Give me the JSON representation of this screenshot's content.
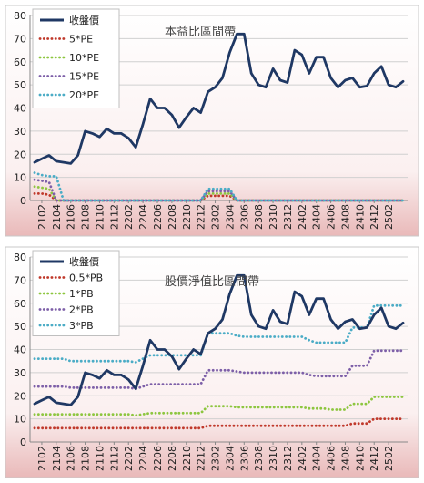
{
  "chart_data": [
    {
      "type": "line",
      "title": "本益比區間帶",
      "xlabel": "",
      "ylabel": "",
      "ylim": [
        0,
        80
      ],
      "yticks": [
        0,
        10,
        20,
        30,
        40,
        50,
        60,
        70,
        80
      ],
      "grid": true,
      "legend_position": "top-left",
      "x_tick_labels": [
        "2102",
        "2104",
        "2106",
        "2108",
        "2110",
        "2112",
        "2202",
        "2204",
        "2206",
        "2208",
        "2210",
        "2212",
        "2302",
        "2304",
        "2306",
        "2308",
        "2310",
        "2312",
        "2402",
        "2404",
        "2406",
        "2408",
        "2410",
        "2412",
        "2502"
      ],
      "series": [
        {
          "name": "收盤價",
          "color": "#1f3864",
          "style": "solid",
          "values": [
            16.5,
            18,
            19.5,
            17,
            16.5,
            16,
            19.5,
            30,
            29,
            27.5,
            31,
            29,
            29,
            27,
            23,
            33,
            44,
            40,
            40,
            37,
            31.5,
            36,
            40,
            38,
            47,
            49,
            53,
            64,
            72,
            72,
            55,
            50,
            49,
            57,
            52,
            51,
            65,
            63,
            55,
            62,
            62,
            53,
            49,
            52,
            53,
            49,
            49.5,
            55,
            58,
            50,
            49,
            51.5
          ]
        },
        {
          "name": "5*PE",
          "color": "#c0392b",
          "style": "dotted",
          "values": [
            3,
            3,
            2.5,
            0,
            0,
            0,
            0,
            0,
            0,
            0,
            0,
            0,
            0,
            0,
            0,
            0,
            0,
            0,
            0,
            0,
            0,
            0,
            0,
            0,
            2,
            2,
            2,
            2,
            0,
            0,
            0,
            0,
            0,
            0,
            0,
            0,
            0,
            0,
            0,
            0,
            0,
            0,
            0,
            0,
            0,
            0,
            0,
            0,
            0,
            0,
            0,
            0
          ]
        },
        {
          "name": "10*PE",
          "color": "#8dc63f",
          "style": "dotted",
          "values": [
            6,
            5.5,
            5,
            0,
            0,
            0,
            0,
            0,
            0,
            0,
            0,
            0,
            0,
            0,
            0,
            0,
            0,
            0,
            0,
            0,
            0,
            0,
            0,
            0,
            3,
            3,
            3,
            3,
            0,
            0,
            0,
            0,
            0,
            0,
            0,
            0,
            0,
            0,
            0,
            0,
            0,
            0,
            0,
            0,
            0,
            0,
            0,
            0,
            0,
            0,
            0,
            0
          ]
        },
        {
          "name": "15*PE",
          "color": "#7d5fa8",
          "style": "dotted",
          "values": [
            9,
            8.5,
            8,
            0,
            0,
            0,
            0,
            0,
            0,
            0,
            0,
            0,
            0,
            0,
            0,
            0,
            0,
            0,
            0,
            0,
            0,
            0,
            0,
            0,
            4,
            4,
            4,
            4,
            0,
            0,
            0,
            0,
            0,
            0,
            0,
            0,
            0,
            0,
            0,
            0,
            0,
            0,
            0,
            0,
            0,
            0,
            0,
            0,
            0,
            0,
            0,
            0
          ]
        },
        {
          "name": "20*PE",
          "color": "#4bacc6",
          "style": "dotted",
          "values": [
            12,
            11,
            10.5,
            10.5,
            0,
            0,
            0,
            0,
            0,
            0,
            0,
            0,
            0,
            0,
            0,
            0,
            0,
            0,
            0,
            0,
            0,
            0,
            0,
            0,
            5,
            5,
            5,
            5,
            0,
            0,
            0,
            0,
            0,
            0,
            0,
            0,
            0,
            0,
            0,
            0,
            0,
            0,
            0,
            0,
            0,
            0,
            0,
            0,
            0,
            0,
            0,
            0
          ]
        }
      ]
    },
    {
      "type": "line",
      "title": "股價淨值比區間帶",
      "xlabel": "",
      "ylabel": "",
      "ylim": [
        0,
        80
      ],
      "yticks": [
        0,
        10,
        20,
        30,
        40,
        50,
        60,
        70,
        80
      ],
      "grid": true,
      "legend_position": "top-left",
      "x_tick_labels": [
        "2102",
        "2104",
        "2106",
        "2108",
        "2110",
        "2112",
        "2202",
        "2204",
        "2206",
        "2208",
        "2210",
        "2212",
        "2302",
        "2304",
        "2306",
        "2308",
        "2310",
        "2312",
        "2402",
        "2404",
        "2406",
        "2408",
        "2410",
        "2412",
        "2502"
      ],
      "series": [
        {
          "name": "收盤價",
          "color": "#1f3864",
          "style": "solid",
          "values": [
            16.5,
            18,
            19.5,
            17,
            16.5,
            16,
            19.5,
            30,
            29,
            27.5,
            31,
            29,
            29,
            27,
            23,
            33,
            44,
            40,
            40,
            37,
            31.5,
            36,
            40,
            38,
            47,
            49,
            53,
            64,
            72,
            72,
            55,
            50,
            49,
            57,
            52,
            51,
            65,
            63,
            55,
            62,
            62,
            53,
            49,
            52,
            53,
            49,
            49.5,
            55,
            58,
            50,
            49,
            51.5
          ]
        },
        {
          "name": "0.5*PB",
          "color": "#c0392b",
          "style": "dotted",
          "values": [
            6,
            6,
            6,
            6,
            6,
            6,
            6,
            6,
            6,
            6,
            6,
            6,
            6,
            6,
            6,
            6,
            6,
            6,
            6,
            6,
            6,
            6,
            6,
            6,
            7,
            7,
            7,
            7,
            7,
            7,
            7,
            7,
            7,
            7,
            7,
            7,
            7,
            7,
            7,
            7,
            7,
            7,
            7,
            7,
            8,
            8,
            8,
            10,
            10,
            10,
            10,
            10
          ]
        },
        {
          "name": "1*PB",
          "color": "#8dc63f",
          "style": "dotted",
          "values": [
            12,
            12,
            12,
            12,
            12,
            12,
            12,
            12,
            12,
            12,
            12,
            12,
            12,
            12,
            11.5,
            12,
            12.5,
            12.5,
            12.5,
            12.5,
            12.5,
            12.5,
            12.5,
            12.5,
            15.5,
            15.5,
            15.5,
            15.5,
            15,
            15,
            15,
            15,
            15,
            15,
            15,
            15,
            15,
            15,
            14.5,
            14.5,
            14.5,
            14,
            14,
            14,
            16.5,
            16.5,
            16.5,
            19.5,
            19.5,
            19.5,
            19.5,
            19.5
          ]
        },
        {
          "name": "2*PB",
          "color": "#7d5fa8",
          "style": "dotted",
          "values": [
            24,
            24,
            24,
            24,
            24,
            23.5,
            23.5,
            23.5,
            23.5,
            23.5,
            23.5,
            23.5,
            23.5,
            23.5,
            23,
            24,
            25,
            25,
            25,
            25,
            25,
            25,
            25,
            25,
            31,
            31,
            31,
            31,
            30.5,
            30,
            30,
            30,
            30,
            30,
            30,
            30,
            30,
            30,
            29,
            28.5,
            28.5,
            28.5,
            28.5,
            28.5,
            33,
            33,
            33,
            39.5,
            39.5,
            39.5,
            39.5,
            39.5
          ]
        },
        {
          "name": "3*PB",
          "color": "#4bacc6",
          "style": "dotted",
          "values": [
            36,
            36,
            36,
            36,
            36,
            35,
            35,
            35,
            35,
            35,
            35,
            35,
            35,
            35,
            34.5,
            36,
            37.5,
            37.5,
            37.5,
            37.5,
            37.5,
            37.5,
            37.5,
            37.5,
            47,
            47,
            47,
            47,
            46,
            45.5,
            45.5,
            45.5,
            45.5,
            45.5,
            45.5,
            45.5,
            45.5,
            45.5,
            44,
            43,
            43,
            43,
            43,
            43,
            49.5,
            49.5,
            49.5,
            59,
            59,
            59,
            59,
            59
          ]
        }
      ]
    }
  ]
}
